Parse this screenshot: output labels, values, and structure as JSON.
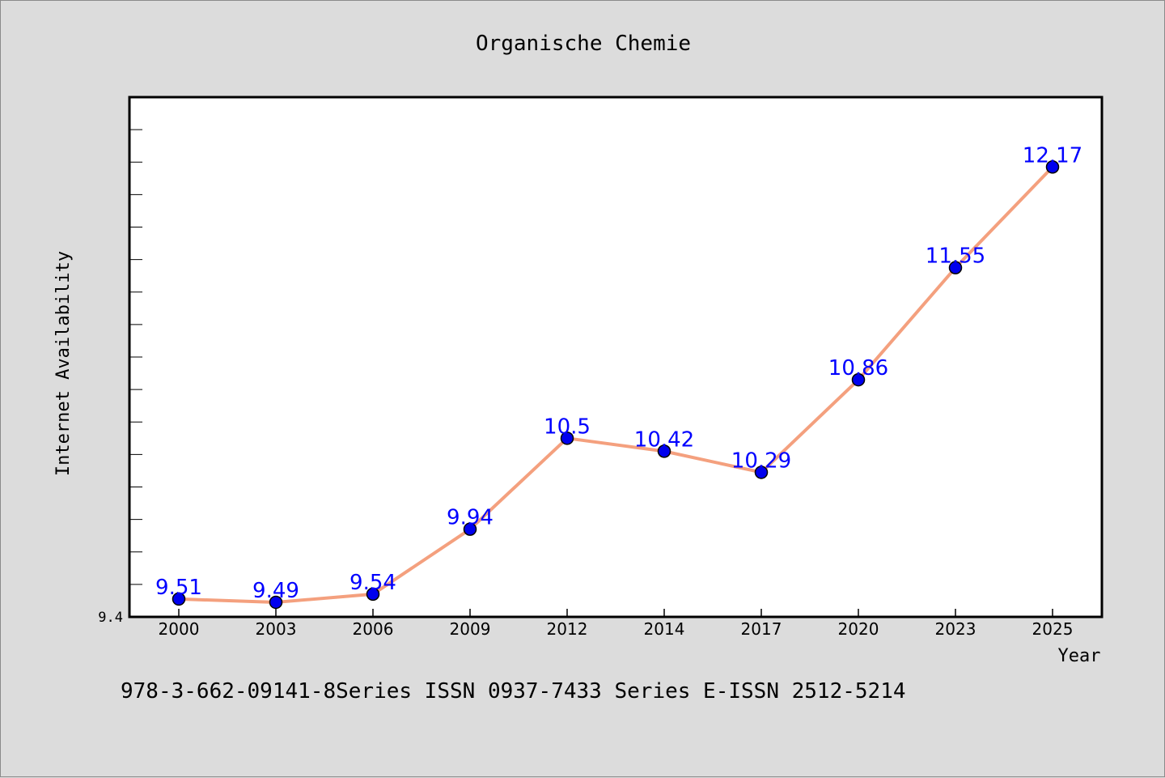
{
  "chart_data": {
    "type": "line",
    "title": "Organische Chemie",
    "xlabel": "Year",
    "ylabel": "Internet Availability",
    "categories": [
      "2000",
      "2003",
      "2006",
      "2009",
      "2012",
      "2014",
      "2017",
      "2020",
      "2023",
      "2025"
    ],
    "series": [
      {
        "values": [
          9.51,
          9.49,
          9.54,
          9.94,
          10.5,
          10.42,
          10.29,
          10.86,
          11.55,
          12.17
        ],
        "line_color": "#f4a07e",
        "marker_color": "#0000ee",
        "label_color": "#0000ff"
      }
    ],
    "ylim": [
      9.4,
      12.6
    ],
    "y_tick_labels": [
      "9.4"
    ],
    "y_minor_tick_step": 0.2,
    "grid": false,
    "legend": "none",
    "data_labels": true,
    "footer": "978-3-662-09141-8Series ISSN 0937-7433 Series E-ISSN 2512-5214"
  }
}
